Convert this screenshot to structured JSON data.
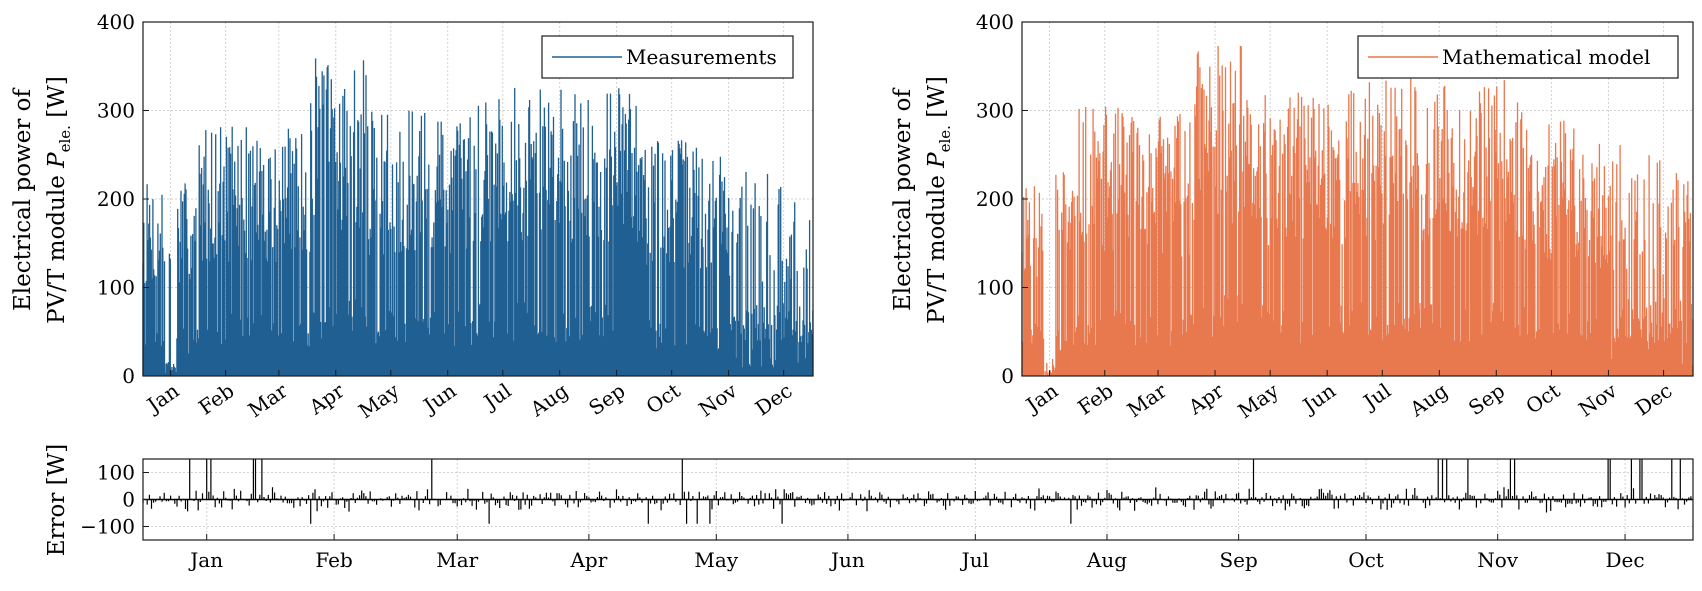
{
  "chart_data": [
    {
      "id": "measured",
      "type": "line",
      "ylabel_line1": "Electrical power of",
      "ylabel_line2": "PV/T module ",
      "ylabel_symbol": "P",
      "ylabel_subscript": "ele.",
      "ylabel_unit": "  [W]",
      "legend": "Measurements",
      "legend_position": "top-right",
      "color": "#1f5f91",
      "ylim": [
        0,
        400
      ],
      "yticks": [
        "0",
        "100",
        "200",
        "300",
        "400"
      ],
      "ytick_values": [
        0,
        100,
        200,
        300,
        400
      ],
      "months": [
        "Jan",
        "Feb",
        "Mar",
        "Apr",
        "May",
        "Jun",
        "Jul",
        "Aug",
        "Sep",
        "Oct",
        "Nov",
        "Dec"
      ],
      "month_day_centers": [
        15,
        45,
        74,
        105,
        135,
        166,
        196,
        227,
        258,
        288,
        319,
        349
      ],
      "xlim_days": [
        0,
        365
      ],
      "grid": true,
      "daily_peak_envelope_by_month": [
        220,
        285,
        280,
        360,
        300,
        300,
        335,
        325,
        330,
        270,
        250,
        235
      ],
      "seed": 7
    },
    {
      "id": "model",
      "type": "line",
      "ylabel_line1": "Electrical power of",
      "ylabel_line2": "PV/T module ",
      "ylabel_symbol": "P",
      "ylabel_subscript": "ele.",
      "ylabel_unit": "  [W]",
      "legend": "Mathematical model",
      "legend_position": "top-right",
      "color": "#e8784d",
      "ylim": [
        0,
        400
      ],
      "yticks": [
        "0",
        "100",
        "200",
        "300",
        "400"
      ],
      "ytick_values": [
        0,
        100,
        200,
        300,
        400
      ],
      "months": [
        "Jan",
        "Feb",
        "Mar",
        "Apr",
        "May",
        "Jun",
        "Jul",
        "Aug",
        "Sep",
        "Oct",
        "Nov",
        "Dec"
      ],
      "month_day_centers": [
        15,
        45,
        74,
        105,
        135,
        166,
        196,
        227,
        258,
        288,
        319,
        349
      ],
      "xlim_days": [
        0,
        365
      ],
      "grid": true,
      "daily_peak_envelope_by_month": [
        240,
        305,
        300,
        375,
        320,
        330,
        340,
        330,
        335,
        290,
        265,
        255
      ],
      "seed": 11
    },
    {
      "id": "error",
      "type": "line",
      "ylabel": "Error [W]",
      "color": "#000000",
      "ylim": [
        -150,
        150
      ],
      "yticks": [
        "100",
        "0",
        "−100"
      ],
      "ytick_values": [
        100,
        0,
        -100
      ],
      "months": [
        "Jan",
        "Feb",
        "Mar",
        "Apr",
        "May",
        "Jun",
        "Jul",
        "Aug",
        "Sep",
        "Oct",
        "Nov",
        "Dec"
      ],
      "month_day_centers": [
        15,
        45,
        74,
        105,
        135,
        166,
        196,
        227,
        258,
        288,
        319,
        349
      ],
      "xlim_days": [
        0,
        365
      ],
      "grid": true,
      "typical_error_amplitude": 35,
      "seed": 23
    }
  ]
}
